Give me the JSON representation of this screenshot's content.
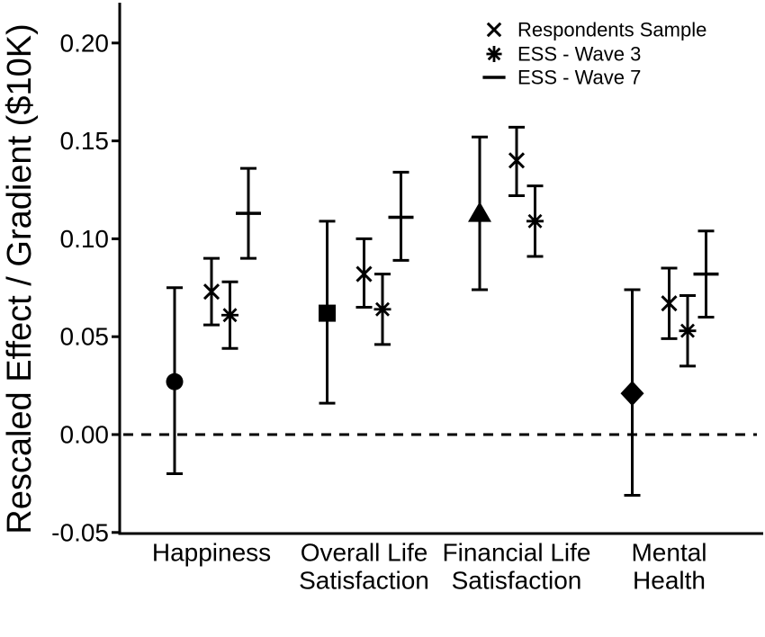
{
  "figure": {
    "background_color": "#ffffff",
    "foreground_color": "#000000"
  },
  "axes": {
    "y": {
      "label": "Rescaled Effect / Gradient ($10K)",
      "ticks": [
        {
          "value": 0.2,
          "label": "0.20"
        },
        {
          "value": 0.15,
          "label": "0.15"
        },
        {
          "value": 0.1,
          "label": "0.10"
        },
        {
          "value": 0.05,
          "label": "0.05"
        },
        {
          "value": 0.0,
          "label": "0.00"
        },
        {
          "value": -0.05,
          "label": "-0.05"
        }
      ]
    },
    "x": {
      "categories": [
        {
          "lines": [
            "Happiness"
          ]
        },
        {
          "lines": [
            "Overall Life",
            "Satisfaction"
          ]
        },
        {
          "lines": [
            "Financial Life",
            "Satisfaction"
          ]
        },
        {
          "lines": [
            "Mental",
            "Health"
          ]
        }
      ]
    }
  },
  "legend": {
    "items": [
      {
        "marker": "x",
        "label": "Respondents Sample"
      },
      {
        "marker": "asterisk",
        "label": "ESS - Wave 3"
      },
      {
        "marker": "dash",
        "label": "ESS - Wave 7"
      }
    ]
  },
  "chart_data": {
    "type": "scatter",
    "title": "",
    "xlabel": "",
    "ylabel": "Rescaled Effect / Gradient ($10K)",
    "ylim": [
      -0.05,
      0.215
    ],
    "yticks": [
      0.2,
      0.15,
      0.1,
      0.05,
      0.0,
      -0.05
    ],
    "grid": false,
    "legend_position": "top-right",
    "reference_line": {
      "y": 0.0,
      "style": "dashed"
    },
    "categories": [
      "Happiness",
      "Overall Life Satisfaction",
      "Financial Life Satisfaction",
      "Mental Health"
    ],
    "series": [
      {
        "name": "",
        "markers": [
          "circle",
          "square",
          "triangle-up",
          "diamond"
        ],
        "dodge_offset": -41,
        "values": [
          0.027,
          0.062,
          0.113,
          0.021
        ],
        "ci_low": [
          -0.02,
          0.016,
          0.074,
          -0.031
        ],
        "ci_high": [
          0.075,
          0.109,
          0.152,
          0.074
        ]
      },
      {
        "name": "Respondents Sample",
        "markers": [
          "x",
          "x",
          "x",
          "x"
        ],
        "dodge_offset": 0,
        "values": [
          0.073,
          0.082,
          0.14,
          0.067
        ],
        "ci_low": [
          0.056,
          0.065,
          0.122,
          0.049
        ],
        "ci_high": [
          0.09,
          0.1,
          0.157,
          0.085
        ]
      },
      {
        "name": "ESS - Wave 3",
        "markers": [
          "asterisk",
          "asterisk",
          "asterisk",
          "asterisk"
        ],
        "dodge_offset": 20.5,
        "values": [
          0.061,
          0.064,
          0.109,
          0.053
        ],
        "ci_low": [
          0.044,
          0.046,
          0.091,
          0.035
        ],
        "ci_high": [
          0.078,
          0.082,
          0.127,
          0.071
        ]
      },
      {
        "name": "ESS - Wave 7",
        "markers": [
          "dash",
          "dash",
          null,
          "dash"
        ],
        "dodge_offset": 41,
        "values": [
          0.113,
          0.111,
          null,
          0.082
        ],
        "ci_low": [
          0.09,
          0.089,
          null,
          0.06
        ],
        "ci_high": [
          0.136,
          0.134,
          null,
          0.104
        ]
      }
    ]
  }
}
